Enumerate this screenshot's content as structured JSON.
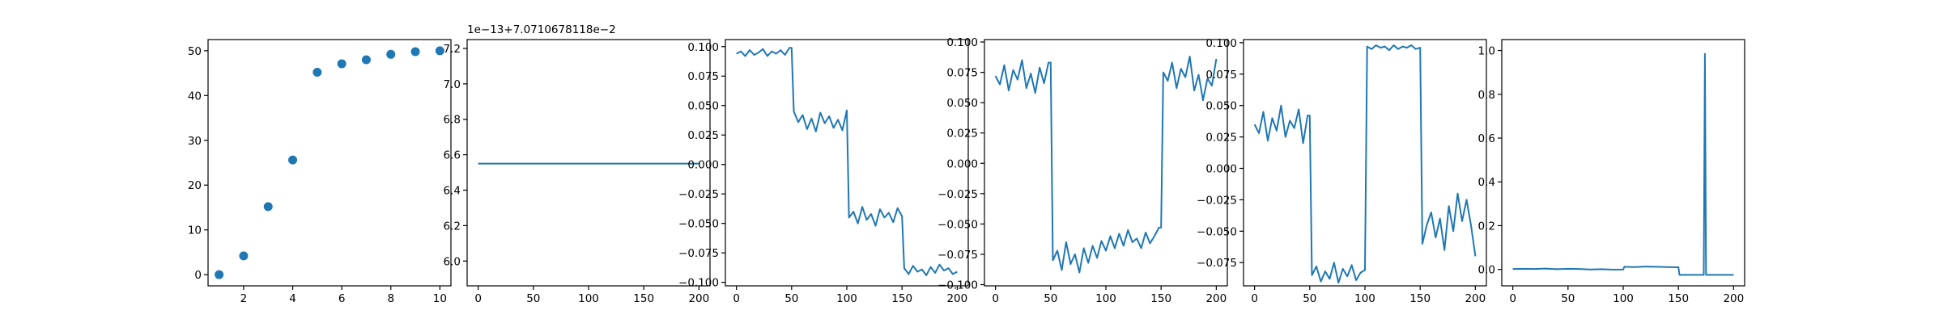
{
  "colors": {
    "series": "#1f77b4",
    "axis": "#000000",
    "background": "#ffffff"
  },
  "chart_data": [
    {
      "type": "scatter",
      "x": [
        1,
        2,
        3,
        4,
        5,
        6,
        7,
        8,
        9,
        10
      ],
      "y": [
        0,
        4.2,
        15.2,
        25.6,
        45.2,
        47.1,
        48.0,
        49.2,
        49.8,
        50.0
      ],
      "xlim": [
        0.55,
        10.45
      ],
      "ylim": [
        -2.5,
        52.5
      ],
      "xticks": [
        2,
        4,
        6,
        8,
        10
      ],
      "yticks": [
        0,
        10,
        20,
        30,
        40,
        50
      ],
      "xticklabels": [
        "2",
        "4",
        "6",
        "8",
        "10"
      ],
      "yticklabels": [
        "0",
        "10",
        "20",
        "30",
        "40",
        "50"
      ],
      "offset_text": "",
      "grid": false
    },
    {
      "type": "line",
      "x": [
        0,
        50,
        100,
        150,
        200
      ],
      "y": [
        6.55,
        6.55,
        6.55,
        6.55,
        6.55
      ],
      "xlim": [
        -10,
        210
      ],
      "ylim": [
        5.86,
        7.25
      ],
      "xticks": [
        0,
        50,
        100,
        150,
        200
      ],
      "yticks": [
        6.0,
        6.2,
        6.4,
        6.6,
        6.8,
        7.0,
        7.2
      ],
      "xticklabels": [
        "0",
        "50",
        "100",
        "150",
        "200"
      ],
      "yticklabels": [
        "6.0",
        "6.2",
        "6.4",
        "6.6",
        "6.8",
        "7.0",
        "7.2"
      ],
      "offset_text": "1e−13+7.0710678118e−2",
      "grid": false
    },
    {
      "type": "line",
      "x": [
        0,
        4,
        8,
        12,
        16,
        20,
        24,
        28,
        32,
        36,
        40,
        44,
        48,
        50,
        52,
        56,
        60,
        64,
        68,
        72,
        76,
        80,
        84,
        88,
        92,
        96,
        100,
        102,
        106,
        110,
        114,
        118,
        122,
        126,
        130,
        134,
        138,
        142,
        146,
        150,
        152,
        156,
        160,
        164,
        168,
        172,
        176,
        180,
        184,
        188,
        192,
        196,
        200
      ],
      "y": [
        0.094,
        0.096,
        0.092,
        0.097,
        0.093,
        0.095,
        0.098,
        0.092,
        0.096,
        0.094,
        0.097,
        0.093,
        0.099,
        0.099,
        0.045,
        0.036,
        0.042,
        0.03,
        0.039,
        0.028,
        0.044,
        0.035,
        0.041,
        0.031,
        0.038,
        0.029,
        0.046,
        -0.045,
        -0.04,
        -0.05,
        -0.036,
        -0.047,
        -0.042,
        -0.052,
        -0.038,
        -0.045,
        -0.041,
        -0.049,
        -0.037,
        -0.044,
        -0.088,
        -0.093,
        -0.086,
        -0.091,
        -0.089,
        -0.094,
        -0.087,
        -0.092,
        -0.085,
        -0.09,
        -0.088,
        -0.093,
        -0.091
      ],
      "xlim": [
        -10,
        210
      ],
      "ylim": [
        -0.103,
        0.106
      ],
      "xticks": [
        0,
        50,
        100,
        150,
        200
      ],
      "yticks": [
        -0.1,
        -0.075,
        -0.05,
        -0.025,
        0.0,
        0.025,
        0.05,
        0.075,
        0.1
      ],
      "xticklabels": [
        "0",
        "50",
        "100",
        "150",
        "200"
      ],
      "yticklabels": [
        "−0.100",
        "−0.075",
        "−0.050",
        "−0.025",
        "0.000",
        "0.025",
        "0.050",
        "0.075",
        "0.100"
      ],
      "offset_text": "",
      "grid": false
    },
    {
      "type": "line",
      "x": [
        0,
        4,
        8,
        12,
        16,
        20,
        24,
        28,
        32,
        36,
        40,
        44,
        48,
        50,
        52,
        56,
        60,
        64,
        68,
        72,
        76,
        80,
        84,
        88,
        92,
        96,
        100,
        104,
        108,
        112,
        116,
        120,
        124,
        128,
        132,
        136,
        140,
        144,
        148,
        150,
        152,
        156,
        160,
        164,
        168,
        172,
        176,
        180,
        184,
        188,
        192,
        196,
        200
      ],
      "y": [
        0.072,
        0.065,
        0.081,
        0.06,
        0.077,
        0.069,
        0.085,
        0.062,
        0.074,
        0.058,
        0.079,
        0.066,
        0.083,
        0.083,
        -0.08,
        -0.072,
        -0.088,
        -0.065,
        -0.083,
        -0.075,
        -0.09,
        -0.07,
        -0.082,
        -0.068,
        -0.078,
        -0.064,
        -0.072,
        -0.06,
        -0.07,
        -0.058,
        -0.068,
        -0.055,
        -0.065,
        -0.062,
        -0.07,
        -0.057,
        -0.066,
        -0.06,
        -0.053,
        -0.053,
        0.075,
        0.068,
        0.083,
        0.062,
        0.078,
        0.071,
        0.088,
        0.06,
        0.073,
        0.052,
        0.07,
        0.064,
        0.086
      ],
      "xlim": [
        -10,
        210
      ],
      "ylim": [
        -0.101,
        0.102
      ],
      "xticks": [
        0,
        50,
        100,
        150,
        200
      ],
      "yticks": [
        -0.1,
        -0.075,
        -0.05,
        -0.025,
        0.0,
        0.025,
        0.05,
        0.075,
        0.1
      ],
      "xticklabels": [
        "0",
        "50",
        "100",
        "150",
        "200"
      ],
      "yticklabels": [
        "−0.100",
        "−0.075",
        "−0.050",
        "−0.025",
        "0.000",
        "0.025",
        "0.050",
        "0.075",
        "0.100"
      ],
      "offset_text": "",
      "grid": false
    },
    {
      "type": "line",
      "x": [
        0,
        4,
        8,
        12,
        16,
        20,
        24,
        28,
        32,
        36,
        40,
        44,
        48,
        50,
        52,
        56,
        60,
        64,
        68,
        72,
        76,
        80,
        84,
        88,
        92,
        96,
        100,
        102,
        106,
        110,
        114,
        118,
        122,
        126,
        130,
        134,
        138,
        142,
        146,
        150,
        152,
        156,
        160,
        164,
        168,
        172,
        176,
        180,
        184,
        188,
        192,
        196,
        200
      ],
      "y": [
        0.035,
        0.028,
        0.045,
        0.022,
        0.04,
        0.03,
        0.05,
        0.025,
        0.038,
        0.032,
        0.047,
        0.02,
        0.042,
        0.042,
        -0.085,
        -0.078,
        -0.09,
        -0.082,
        -0.088,
        -0.075,
        -0.091,
        -0.08,
        -0.086,
        -0.077,
        -0.089,
        -0.083,
        -0.081,
        0.097,
        0.095,
        0.098,
        0.096,
        0.097,
        0.094,
        0.098,
        0.095,
        0.097,
        0.096,
        0.098,
        0.095,
        0.096,
        -0.06,
        -0.045,
        -0.035,
        -0.055,
        -0.04,
        -0.065,
        -0.03,
        -0.05,
        -0.02,
        -0.042,
        -0.025,
        -0.045,
        -0.07
      ],
      "xlim": [
        -10,
        210
      ],
      "ylim": [
        -0.0935,
        0.1025
      ],
      "xticks": [
        0,
        50,
        100,
        150,
        200
      ],
      "yticks": [
        -0.075,
        -0.05,
        -0.025,
        0.0,
        0.025,
        0.05,
        0.075,
        0.1
      ],
      "xticklabels": [
        "0",
        "50",
        "100",
        "150",
        "200"
      ],
      "yticklabels": [
        "−0.075",
        "−0.050",
        "−0.025",
        "0.000",
        "0.025",
        "0.050",
        "0.075",
        "0.100"
      ],
      "offset_text": "",
      "grid": false
    },
    {
      "type": "line",
      "x": [
        0,
        10,
        20,
        30,
        40,
        50,
        60,
        70,
        80,
        90,
        100,
        101,
        110,
        120,
        130,
        140,
        150,
        151,
        160,
        170,
        173,
        174,
        175,
        176,
        180,
        190,
        200
      ],
      "y": [
        0.002,
        0.003,
        0.002,
        0.004,
        0.001,
        0.003,
        0.002,
        0.0,
        0.001,
        -0.001,
        0.0,
        0.012,
        0.011,
        0.013,
        0.012,
        0.011,
        0.01,
        -0.025,
        -0.025,
        -0.025,
        -0.025,
        0.985,
        -0.025,
        -0.025,
        -0.025,
        -0.025,
        -0.025
      ],
      "xlim": [
        -10,
        210
      ],
      "ylim": [
        -0.075,
        1.05
      ],
      "xticks": [
        0,
        50,
        100,
        150,
        200
      ],
      "yticks": [
        0.0,
        0.2,
        0.4,
        0.6,
        0.8,
        1.0
      ],
      "xticklabels": [
        "0",
        "50",
        "100",
        "150",
        "200"
      ],
      "yticklabels": [
        "0.0",
        "0.2",
        "0.4",
        "0.6",
        "0.8",
        "1.0"
      ],
      "offset_text": "",
      "grid": false
    }
  ]
}
